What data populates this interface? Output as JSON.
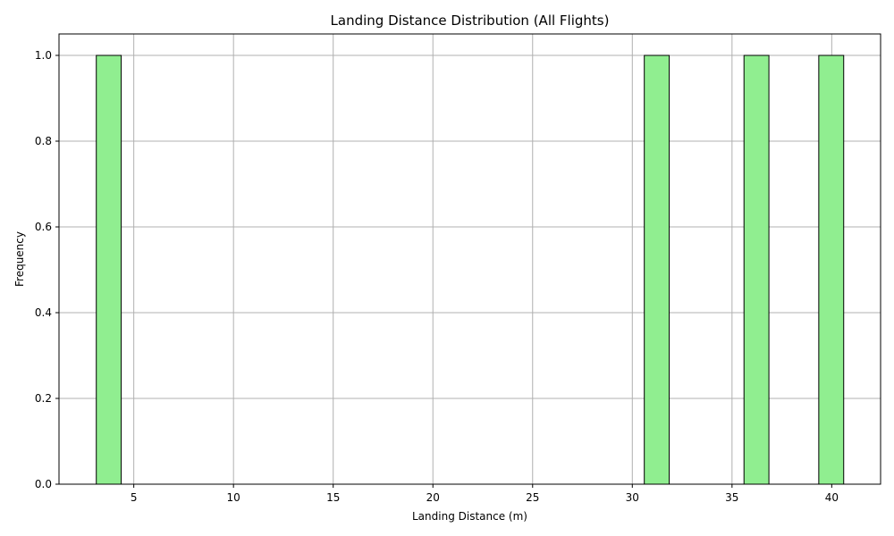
{
  "chart_data": {
    "type": "bar",
    "title": "Landing Distance Distribution (All Flights)",
    "xlabel": "Landing Distance (m)",
    "ylabel": "Frequency",
    "xlim": [
      1.25,
      42.45
    ],
    "ylim": [
      0,
      1.05
    ],
    "xticks": [
      5,
      10,
      15,
      20,
      25,
      30,
      35,
      40
    ],
    "yticks": [
      0.0,
      0.2,
      0.4,
      0.6,
      0.8,
      1.0
    ],
    "xtick_labels": [
      "5",
      "10",
      "15",
      "20",
      "25",
      "30",
      "35",
      "40"
    ],
    "ytick_labels": [
      "0.0",
      "0.2",
      "0.4",
      "0.6",
      "0.8",
      "1.0"
    ],
    "grid": true,
    "bar_color": "#90ee90",
    "edge_color": "#000000",
    "bin_edges": [
      3.12,
      4.37,
      30.6,
      31.85,
      35.6,
      36.85,
      39.35,
      40.6
    ],
    "bins": [
      {
        "start": 3.12,
        "end": 4.37,
        "value": 1
      },
      {
        "start": 30.6,
        "end": 31.85,
        "value": 1
      },
      {
        "start": 35.6,
        "end": 36.85,
        "value": 1
      },
      {
        "start": 39.35,
        "end": 40.6,
        "value": 1
      }
    ],
    "zero_span": [
      4.37,
      39.35
    ]
  }
}
